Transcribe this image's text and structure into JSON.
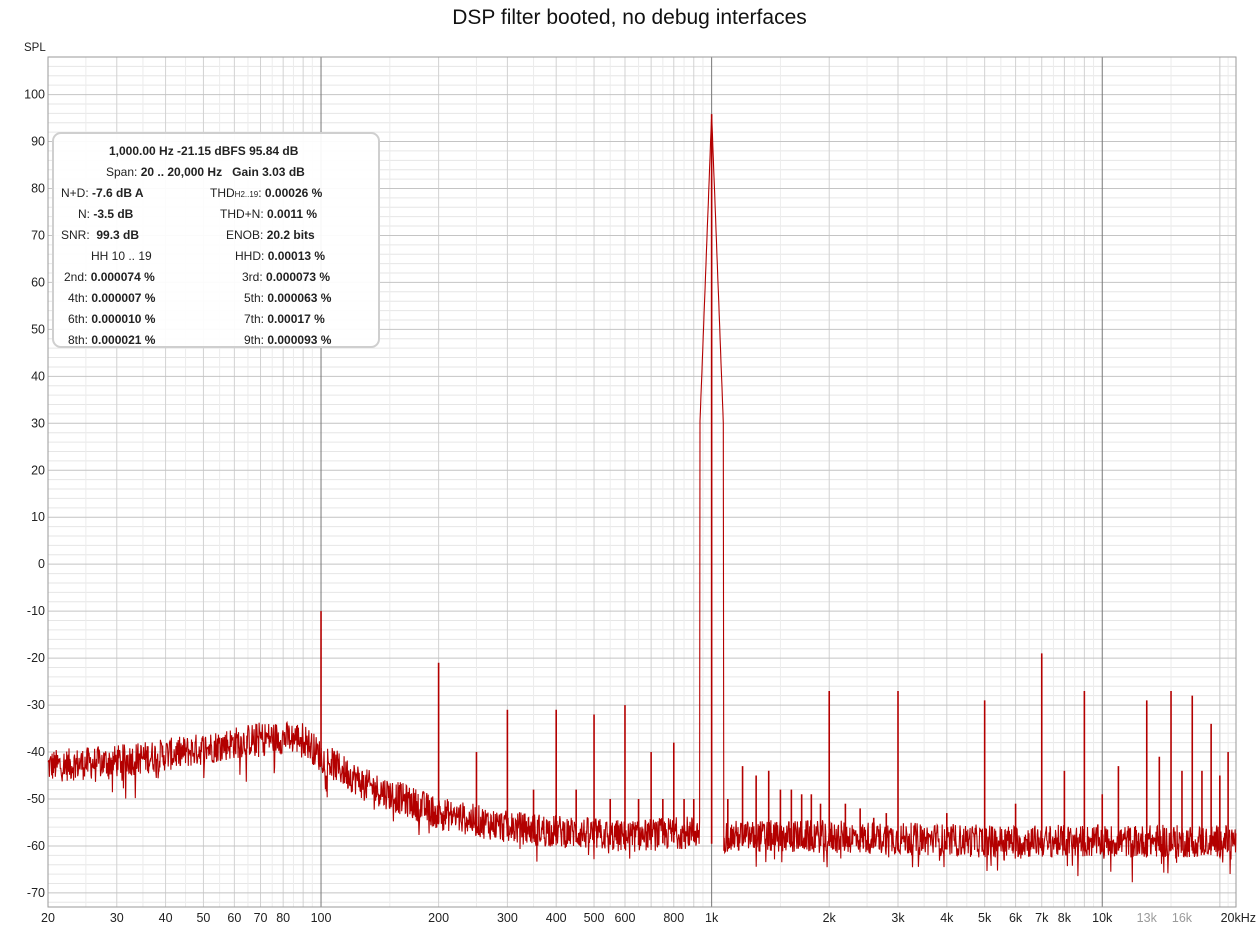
{
  "chart_data": {
    "type": "line",
    "title": "DSP filter booted, no debug interfaces",
    "ylabel": "SPL",
    "xlabel": "",
    "x_scale": "log",
    "xlim": [
      20,
      22000
    ],
    "ylim": [
      -73,
      108
    ],
    "grid": true,
    "x_tick_labels": [
      {
        "v": 20,
        "t": "20"
      },
      {
        "v": 30,
        "t": "30"
      },
      {
        "v": 40,
        "t": "40"
      },
      {
        "v": 50,
        "t": "50"
      },
      {
        "v": 60,
        "t": "60"
      },
      {
        "v": 70,
        "t": "70"
      },
      {
        "v": 80,
        "t": "80"
      },
      {
        "v": 100,
        "t": "100"
      },
      {
        "v": 200,
        "t": "200"
      },
      {
        "v": 300,
        "t": "300"
      },
      {
        "v": 400,
        "t": "400"
      },
      {
        "v": 500,
        "t": "500"
      },
      {
        "v": 600,
        "t": "600"
      },
      {
        "v": 800,
        "t": "800"
      },
      {
        "v": 1000,
        "t": "1k"
      },
      {
        "v": 2000,
        "t": "2k"
      },
      {
        "v": 3000,
        "t": "3k"
      },
      {
        "v": 4000,
        "t": "4k"
      },
      {
        "v": 5000,
        "t": "5k"
      },
      {
        "v": 6000,
        "t": "6k"
      },
      {
        "v": 7000,
        "t": "7k"
      },
      {
        "v": 8000,
        "t": "8k"
      },
      {
        "v": 10000,
        "t": "10k"
      },
      {
        "v": 13000,
        "t": "13k"
      },
      {
        "v": 16000,
        "t": "16k"
      },
      {
        "v": 20000,
        "t": "20kHz"
      }
    ],
    "y_ticks": [
      100,
      90,
      80,
      70,
      60,
      50,
      40,
      30,
      20,
      10,
      0,
      -10,
      -20,
      -30,
      -40,
      -50,
      -60,
      -70
    ],
    "series": [
      {
        "color": "#b30000",
        "noise_floor": [
          [
            20,
            -43
          ],
          [
            30,
            -42
          ],
          [
            45,
            -40
          ],
          [
            70,
            -37
          ],
          [
            90,
            -37
          ],
          [
            100,
            -41
          ],
          [
            130,
            -47
          ],
          [
            200,
            -53
          ],
          [
            300,
            -56
          ],
          [
            600,
            -58
          ],
          [
            900,
            -57
          ],
          [
            1100,
            -58
          ],
          [
            2000,
            -58
          ],
          [
            5000,
            -59
          ],
          [
            10000,
            -59
          ],
          [
            22000,
            -59
          ]
        ],
        "peaks": [
          [
            100,
            -10
          ],
          [
            200,
            -21
          ],
          [
            250,
            -40
          ],
          [
            300,
            -31
          ],
          [
            350,
            -48
          ],
          [
            400,
            -31
          ],
          [
            450,
            -48
          ],
          [
            500,
            -32
          ],
          [
            550,
            -50
          ],
          [
            600,
            -30
          ],
          [
            650,
            -50
          ],
          [
            700,
            -40
          ],
          [
            750,
            -50
          ],
          [
            800,
            -38
          ],
          [
            850,
            -50
          ],
          [
            900,
            -50
          ],
          [
            1000,
            95.84
          ],
          [
            1100,
            -50
          ],
          [
            1200,
            -43
          ],
          [
            1300,
            -45
          ],
          [
            1400,
            -44
          ],
          [
            1500,
            -48
          ],
          [
            1600,
            -48
          ],
          [
            1700,
            -49
          ],
          [
            1800,
            -49
          ],
          [
            1900,
            -51
          ],
          [
            2000,
            -27
          ],
          [
            2200,
            -51
          ],
          [
            2400,
            -52
          ],
          [
            2600,
            -54
          ],
          [
            2800,
            -53
          ],
          [
            3000,
            -27
          ],
          [
            4000,
            -53
          ],
          [
            5000,
            -29
          ],
          [
            6000,
            -51
          ],
          [
            7000,
            -19
          ],
          [
            8000,
            -44
          ],
          [
            9000,
            -27
          ],
          [
            10000,
            -49
          ],
          [
            11000,
            -43
          ],
          [
            13000,
            -29
          ],
          [
            14000,
            -41
          ],
          [
            15000,
            -27
          ],
          [
            16000,
            -44
          ],
          [
            17000,
            -28
          ],
          [
            18000,
            -44
          ],
          [
            19000,
            -34
          ],
          [
            20000,
            -45
          ],
          [
            21000,
            -40
          ]
        ]
      }
    ]
  },
  "info_box": {
    "line1": "1,000.00 Hz  -21.15 dBFS  95.84 dB",
    "span_label": "Span:",
    "span_value": "20 .. 20,000 Hz",
    "gain_label": "Gain",
    "gain_value": "3.03 dB",
    "nd_label": "N+D:",
    "nd_value": "-7.6 dB A",
    "thd_label": "THD",
    "thd_sub": "H2..19",
    "thd_value": "0.00026 %",
    "n_label": "N:",
    "n_value": "-3.5 dB",
    "thdn_label": "THD+N:",
    "thdn_value": "0.0011 %",
    "snr_label": "SNR:",
    "snr_value": "99.3 dB",
    "enob_label": "ENOB:",
    "enob_value": "20.2 bits",
    "hh_label": "HH 10 .. 19",
    "hhd_label": "HHD:",
    "hhd_value": "0.00013 %",
    "h2_label": "2nd:",
    "h2_value": "0.000074 %",
    "h3_label": "3rd:",
    "h3_value": "0.000073 %",
    "h4_label": "4th:",
    "h4_value": "0.000007 %",
    "h5_label": "5th:",
    "h5_value": "0.000063 %",
    "h6_label": "6th:",
    "h6_value": "0.000010 %",
    "h7_label": "7th:",
    "h7_value": "0.00017 %",
    "h8_label": "8th:",
    "h8_value": "0.000021 %",
    "h9_label": "9th:",
    "h9_value": "0.000093 %"
  }
}
